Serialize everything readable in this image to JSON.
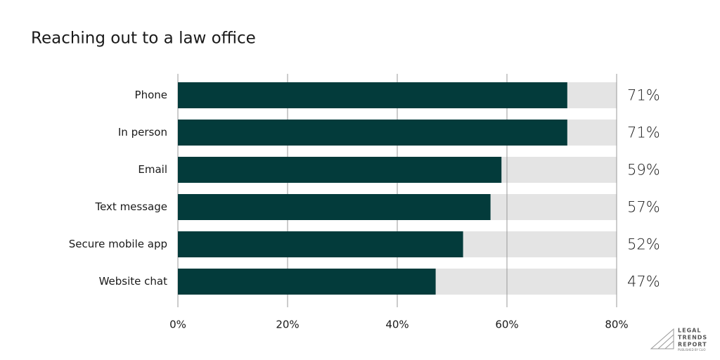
{
  "chart_data": {
    "type": "bar",
    "orientation": "horizontal",
    "title": "Reaching out to a law office",
    "categories": [
      "Phone",
      "In person",
      "Email",
      "Text message",
      "Secure mobile app",
      "Website chat"
    ],
    "values": [
      71,
      71,
      59,
      57,
      52,
      47
    ],
    "value_labels": [
      "71%",
      "71%",
      "59%",
      "57%",
      "52%",
      "47%"
    ],
    "color": "#033b3b",
    "track_color": "#e4e4e4",
    "xlim": [
      0,
      80
    ],
    "xticks": [
      {
        "value": 0,
        "label": "0%"
      },
      {
        "value": 20,
        "label": "20%"
      },
      {
        "value": 40,
        "label": "40%"
      },
      {
        "value": 60,
        "label": "60%"
      },
      {
        "value": 80,
        "label": "80%"
      }
    ],
    "grid": true
  },
  "logo": {
    "lines": [
      "LEGAL",
      "TRENDS",
      "REPORT"
    ],
    "sub": "PUBLISHED BY CLIO"
  }
}
